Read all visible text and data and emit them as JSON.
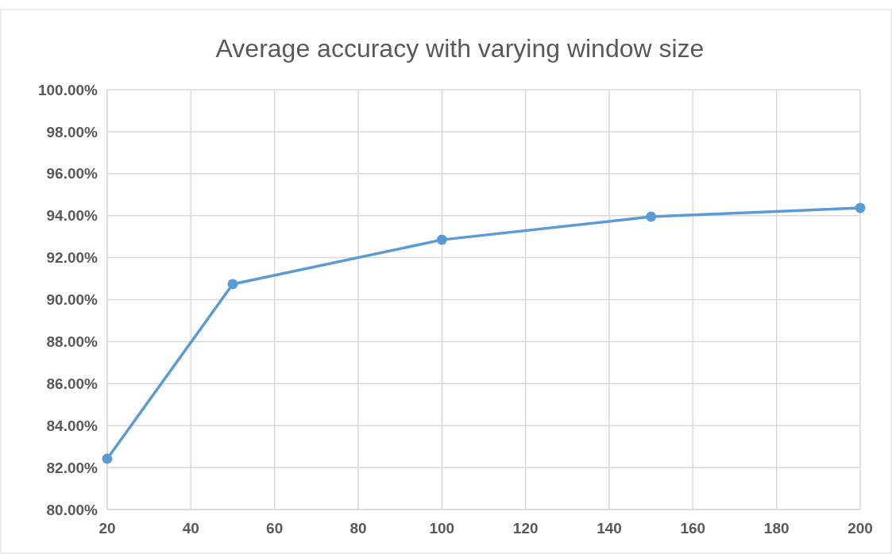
{
  "chart_data": {
    "type": "line",
    "title": "Average accuracy with varying window size",
    "x": [
      20,
      50,
      100,
      150,
      200
    ],
    "series": [
      {
        "color": "#5b9bd5",
        "values": [
          82.42,
          90.74,
          92.85,
          93.95,
          94.37
        ]
      }
    ],
    "xlim": [
      20,
      200
    ],
    "xticks": [
      20,
      40,
      60,
      80,
      100,
      120,
      140,
      160,
      180,
      200
    ],
    "ylim": [
      80,
      100
    ],
    "yticks": [
      {
        "value": 80,
        "label": "80.00%"
      },
      {
        "value": 82,
        "label": "82.00%"
      },
      {
        "value": 84,
        "label": "84.00%"
      },
      {
        "value": 86,
        "label": "86.00%"
      },
      {
        "value": 88,
        "label": "88.00%"
      },
      {
        "value": 90,
        "label": "90.00%"
      },
      {
        "value": 92,
        "label": "92.00%"
      },
      {
        "value": 94,
        "label": "94.00%"
      },
      {
        "value": 96,
        "label": "96.00%"
      },
      {
        "value": 98,
        "label": "98.00%"
      },
      {
        "value": 100,
        "label": "100.00%"
      }
    ],
    "grid": true,
    "marker": "circle",
    "line_style": "solid"
  }
}
